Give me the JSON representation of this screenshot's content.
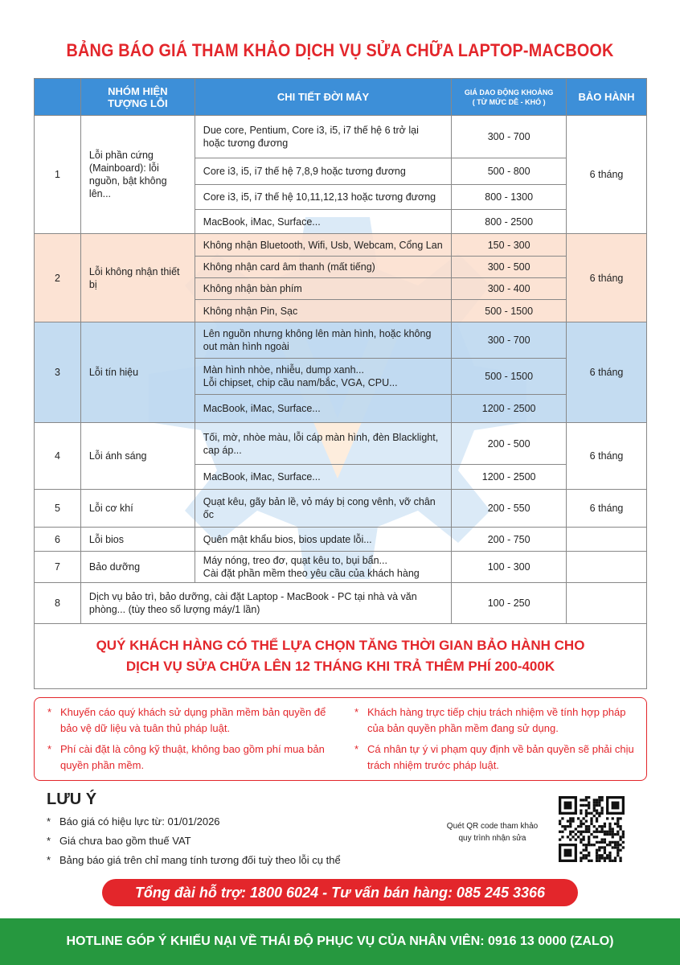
{
  "title": "BẢNG BÁO GIÁ THAM KHẢO DỊCH VỤ SỬA CHỮA LAPTOP-MACBOOK",
  "colors": {
    "accent_red": "#e3262b",
    "header_blue": "#3d8fd8",
    "footer_green": "#26983f",
    "row_peach": "#fbdecc",
    "row_blue": "#bed8f0"
  },
  "table": {
    "headers": {
      "issue_group": "NHÓM HIỆN TƯỢNG LỖI",
      "detail": "CHI TIẾT ĐỜI MÁY",
      "price_line1": "GIÁ DAO ĐỘNG KHOẢNG",
      "price_line2": "( TỪ MỨC DỄ - KHÓ )",
      "warranty": "BẢO HÀNH"
    },
    "groups": [
      {
        "no": "1",
        "issue": "Lỗi phần cứng (Mainboard): lỗi nguồn, bật không lên...",
        "warranty": "6 tháng",
        "items": [
          {
            "detail": "Due core, Pentium, Core i3, i5, i7 thế hệ 6 trở lại hoặc tương đương",
            "price": "300 - 700"
          },
          {
            "detail": "Core i3, i5, i7 thế hệ 7,8,9 hoặc tương đương",
            "price": "500 - 800"
          },
          {
            "detail": "Core i3, i5, i7 thế hệ 10,11,12,13 hoặc tương đương",
            "price": "800 - 1300"
          },
          {
            "detail": "MacBook, iMac, Surface...",
            "price": "800 - 2500"
          }
        ]
      },
      {
        "no": "2",
        "issue": "Lỗi không nhận thiết bị",
        "warranty": "6 tháng",
        "items": [
          {
            "detail": "Không nhận Bluetooth, Wifi, Usb, Webcam, Cổng Lan",
            "price": "150 - 300"
          },
          {
            "detail": "Không nhận card âm thanh (mất tiếng)",
            "price": "300 - 500"
          },
          {
            "detail": "Không nhận bàn phím",
            "price": "300 - 400"
          },
          {
            "detail": "Không nhận Pin, Sạc",
            "price": "500 - 1500"
          }
        ]
      },
      {
        "no": "3",
        "issue": "Lỗi tín hiệu",
        "warranty": "6 tháng",
        "items": [
          {
            "detail": "Lên nguồn nhưng không lên màn hình, hoặc không out màn hình ngoài",
            "price": "300 - 700"
          },
          {
            "detail": "Màn hình nhòe, nhiễu, dump xanh...\nLỗi chipset, chip cầu nam/bắc, VGA, CPU...",
            "price": "500 - 1500"
          },
          {
            "detail": "MacBook, iMac, Surface...",
            "price": "1200 - 2500"
          }
        ]
      },
      {
        "no": "4",
        "issue": "Lỗi ánh sáng",
        "warranty": "6 tháng",
        "items": [
          {
            "detail": "Tối, mờ, nhòe màu, lỗi cáp màn hình, đèn Blacklight, cap áp...",
            "price": "200 - 500"
          },
          {
            "detail": "MacBook, iMac, Surface...",
            "price": "1200 - 2500"
          }
        ]
      },
      {
        "no": "5",
        "issue": "Lỗi cơ khí",
        "warranty": "6 tháng",
        "items": [
          {
            "detail": "Quạt kêu, gãy bản lề, vỏ máy bị cong vênh, vỡ chân ốc",
            "price": "200 - 550"
          }
        ]
      },
      {
        "no": "6",
        "issue": "Lỗi bios",
        "warranty": "",
        "items": [
          {
            "detail": "Quên mật khẩu bios, bios update lỗi...",
            "price": "200 - 750"
          }
        ]
      },
      {
        "no": "7",
        "issue": "Bảo dưỡng",
        "warranty": "",
        "items": [
          {
            "detail": "Máy nóng, treo đơ, quạt kêu to, bụi bẩn...\nCài đặt phần mềm theo yêu cầu của khách hàng",
            "price": "100 - 300"
          }
        ]
      },
      {
        "no": "8",
        "issue": "Dịch vụ bảo trì, bảo dưỡng, cài đặt Laptop - MacBook - PC tại nhà và văn phòng... (tùy theo số lượng máy/1 lần)",
        "warranty": "",
        "merged": true,
        "items": [
          {
            "detail": "",
            "price": "100 - 250"
          }
        ]
      }
    ],
    "warranty_note_line1": "QUÝ KHÁCH HÀNG CÓ THỂ LỰA CHỌN TĂNG THỜI GIAN BẢO HÀNH CHO",
    "warranty_note_line2": "DỊCH VỤ SỬA CHỮA LÊN 12 THÁNG KHI TRẢ THÊM PHÍ 200-400K"
  },
  "notices": {
    "left": [
      "Khuyến cáo quý khách sử dụng phần mềm bản quyền để bảo vệ dữ liệu và tuân thủ pháp luật.",
      "Phí cài đặt là công kỹ thuật, không bao gồm phí mua bản quyền phần mềm."
    ],
    "right": [
      "Khách hàng trực tiếp chịu trách nhiệm về tính hợp pháp của bản quyền phần mềm đang sử dụng.",
      "Cá nhân tự ý vi phạm quy định về bản quyền sẽ phải chịu trách nhiệm trước pháp luật."
    ]
  },
  "luu_y": {
    "heading": "LƯU Ý",
    "items": [
      "Báo giá có hiệu lực từ:  01/01/2026",
      "Giá chưa bao gồm thuế VAT",
      "Bảng báo giá trên chỉ mang tính tương đối tuỳ theo lỗi cụ thể"
    ]
  },
  "qr": {
    "caption_line1": "Quét QR code tham khảo",
    "caption_line2": "quy trình nhận sửa"
  },
  "support_banner": "Tổng đài hỗ trợ: 1800 6024 - Tư vấn bán hàng: 085 245 3366",
  "footer": "HOTLINE GÓP Ý KHIẾU NẠI VỀ THÁI ĐỘ PHỤC VỤ CỦA NHÂN VIÊN: 0916 13 0000 (ZALO)"
}
